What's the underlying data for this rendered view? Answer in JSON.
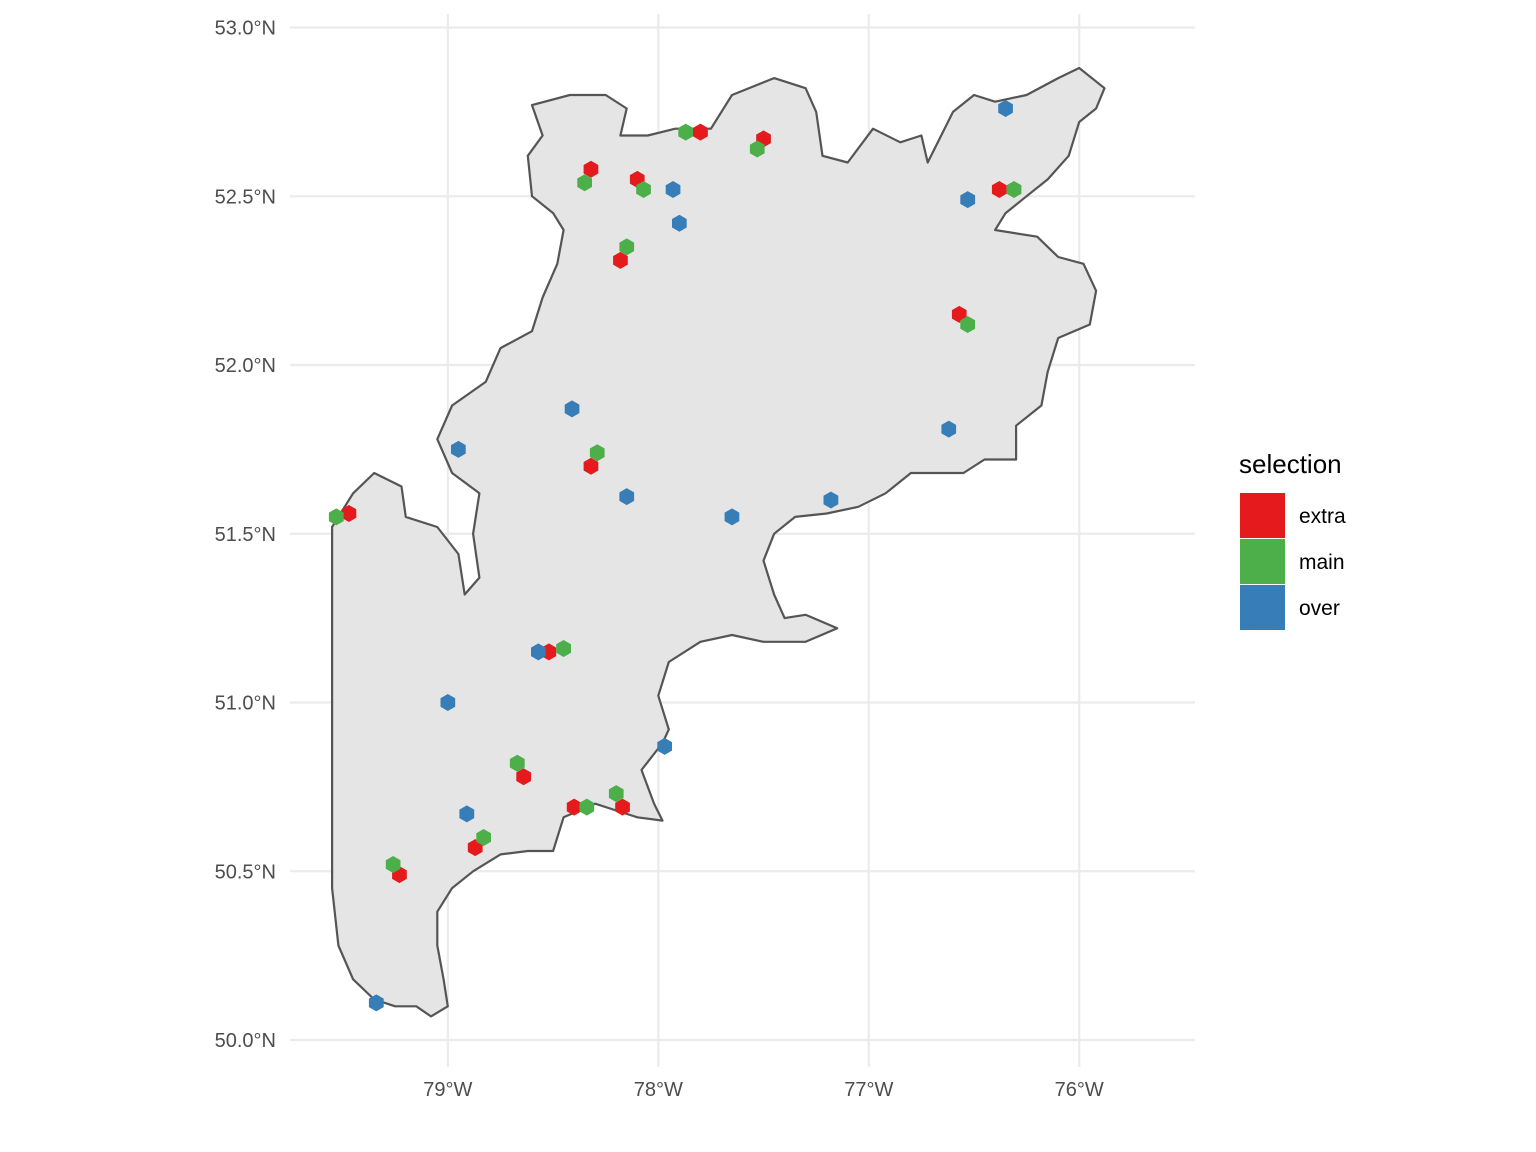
{
  "chart_data": {
    "type": "scatter",
    "title": "",
    "xlabel": "",
    "ylabel": "",
    "xlim": [
      -79.75,
      -75.45
    ],
    "ylim": [
      49.92,
      53.04
    ],
    "x_ticks": [
      {
        "value": -79,
        "label": "79°W"
      },
      {
        "value": -78,
        "label": "78°W"
      },
      {
        "value": -77,
        "label": "77°W"
      },
      {
        "value": -76,
        "label": "76°W"
      }
    ],
    "y_ticks": [
      {
        "value": 50.0,
        "label": "50.0°N"
      },
      {
        "value": 50.5,
        "label": "50.5°N"
      },
      {
        "value": 51.0,
        "label": "51.0°N"
      },
      {
        "value": 51.5,
        "label": "51.5°N"
      },
      {
        "value": 52.0,
        "label": "52.0°N"
      },
      {
        "value": 52.5,
        "label": "52.5°N"
      },
      {
        "value": 53.0,
        "label": "53.0°N"
      }
    ],
    "grid": true,
    "legend": {
      "title": "selection",
      "placement": "right",
      "entries": [
        {
          "label": "extra",
          "color": "#e41a1c"
        },
        {
          "label": "main",
          "color": "#4daf4a"
        },
        {
          "label": "over",
          "color": "#377eb8"
        }
      ]
    },
    "region": {
      "fill": "#e5e5e5",
      "stroke": "#555555",
      "outline": [
        [
          -79.55,
          51.52
        ],
        [
          -79.45,
          51.62
        ],
        [
          -79.35,
          51.68
        ],
        [
          -79.22,
          51.64
        ],
        [
          -79.2,
          51.55
        ],
        [
          -79.05,
          51.52
        ],
        [
          -78.95,
          51.44
        ],
        [
          -78.92,
          51.32
        ],
        [
          -78.85,
          51.37
        ],
        [
          -78.88,
          51.5
        ],
        [
          -78.85,
          51.62
        ],
        [
          -78.98,
          51.68
        ],
        [
          -79.05,
          51.78
        ],
        [
          -78.98,
          51.88
        ],
        [
          -78.82,
          51.95
        ],
        [
          -78.75,
          52.05
        ],
        [
          -78.6,
          52.1
        ],
        [
          -78.55,
          52.2
        ],
        [
          -78.48,
          52.3
        ],
        [
          -78.45,
          52.4
        ],
        [
          -78.5,
          52.45
        ],
        [
          -78.6,
          52.5
        ],
        [
          -78.62,
          52.62
        ],
        [
          -78.55,
          52.68
        ],
        [
          -78.6,
          52.77
        ],
        [
          -78.42,
          52.8
        ],
        [
          -78.25,
          52.8
        ],
        [
          -78.15,
          52.76
        ],
        [
          -78.18,
          52.68
        ],
        [
          -78.05,
          52.68
        ],
        [
          -77.92,
          52.7
        ],
        [
          -77.75,
          52.7
        ],
        [
          -77.65,
          52.8
        ],
        [
          -77.45,
          52.85
        ],
        [
          -77.3,
          52.82
        ],
        [
          -77.25,
          52.75
        ],
        [
          -77.22,
          52.62
        ],
        [
          -77.1,
          52.6
        ],
        [
          -76.98,
          52.7
        ],
        [
          -76.85,
          52.66
        ],
        [
          -76.75,
          52.68
        ],
        [
          -76.72,
          52.6
        ],
        [
          -76.6,
          52.75
        ],
        [
          -76.5,
          52.8
        ],
        [
          -76.4,
          52.78
        ],
        [
          -76.25,
          52.8
        ],
        [
          -76.1,
          52.85
        ],
        [
          -76.0,
          52.88
        ],
        [
          -75.88,
          52.82
        ],
        [
          -75.92,
          52.76
        ],
        [
          -76.0,
          52.72
        ],
        [
          -76.05,
          52.62
        ],
        [
          -76.15,
          52.55
        ],
        [
          -76.25,
          52.5
        ],
        [
          -76.35,
          52.45
        ],
        [
          -76.4,
          52.4
        ],
        [
          -76.2,
          52.38
        ],
        [
          -76.1,
          52.32
        ],
        [
          -75.98,
          52.3
        ],
        [
          -75.92,
          52.22
        ],
        [
          -75.95,
          52.12
        ],
        [
          -76.1,
          52.08
        ],
        [
          -76.15,
          51.98
        ],
        [
          -76.18,
          51.88
        ],
        [
          -76.3,
          51.82
        ],
        [
          -76.3,
          51.72
        ],
        [
          -76.45,
          51.72
        ],
        [
          -76.55,
          51.68
        ],
        [
          -76.8,
          51.68
        ],
        [
          -76.92,
          51.62
        ],
        [
          -77.05,
          51.58
        ],
        [
          -77.2,
          51.56
        ],
        [
          -77.35,
          51.55
        ],
        [
          -77.45,
          51.5
        ],
        [
          -77.5,
          51.42
        ],
        [
          -77.45,
          51.32
        ],
        [
          -77.4,
          51.25
        ],
        [
          -77.3,
          51.26
        ],
        [
          -77.15,
          51.22
        ],
        [
          -77.3,
          51.18
        ],
        [
          -77.5,
          51.18
        ],
        [
          -77.65,
          51.2
        ],
        [
          -77.8,
          51.18
        ],
        [
          -77.95,
          51.12
        ],
        [
          -78.0,
          51.02
        ],
        [
          -77.95,
          50.92
        ],
        [
          -77.98,
          50.88
        ],
        [
          -78.08,
          50.8
        ],
        [
          -78.02,
          50.7
        ],
        [
          -77.98,
          50.65
        ],
        [
          -78.1,
          50.66
        ],
        [
          -78.2,
          50.68
        ],
        [
          -78.3,
          50.7
        ],
        [
          -78.45,
          50.66
        ],
        [
          -78.5,
          50.56
        ],
        [
          -78.62,
          50.56
        ],
        [
          -78.75,
          50.55
        ],
        [
          -78.88,
          50.5
        ],
        [
          -78.98,
          50.45
        ],
        [
          -79.05,
          50.38
        ],
        [
          -79.05,
          50.28
        ],
        [
          -79.02,
          50.18
        ],
        [
          -79.0,
          50.1
        ],
        [
          -79.08,
          50.07
        ],
        [
          -79.15,
          50.1
        ],
        [
          -79.25,
          50.1
        ],
        [
          -79.35,
          50.12
        ],
        [
          -79.45,
          50.18
        ],
        [
          -79.52,
          50.28
        ],
        [
          -79.55,
          50.45
        ],
        [
          -79.55,
          50.7
        ],
        [
          -79.55,
          50.95
        ],
        [
          -79.55,
          51.2
        ],
        [
          -79.55,
          51.4
        ]
      ]
    },
    "series": [
      {
        "name": "extra",
        "color": "#e41a1c",
        "points": [
          {
            "x": -79.47,
            "y": 51.56
          },
          {
            "x": -78.32,
            "y": 52.58
          },
          {
            "x": -78.1,
            "y": 52.55
          },
          {
            "x": -77.8,
            "y": 52.69
          },
          {
            "x": -77.5,
            "y": 52.67
          },
          {
            "x": -78.18,
            "y": 52.31
          },
          {
            "x": -76.57,
            "y": 52.15
          },
          {
            "x": -76.38,
            "y": 52.52
          },
          {
            "x": -78.32,
            "y": 51.7
          },
          {
            "x": -78.52,
            "y": 51.15
          },
          {
            "x": -78.64,
            "y": 50.78
          },
          {
            "x": -78.4,
            "y": 50.69
          },
          {
            "x": -78.17,
            "y": 50.69
          },
          {
            "x": -78.87,
            "y": 50.57
          },
          {
            "x": -79.23,
            "y": 50.49
          }
        ]
      },
      {
        "name": "main",
        "color": "#4daf4a",
        "points": [
          {
            "x": -79.53,
            "y": 51.55
          },
          {
            "x": -78.35,
            "y": 52.54
          },
          {
            "x": -78.07,
            "y": 52.52
          },
          {
            "x": -77.87,
            "y": 52.69
          },
          {
            "x": -77.53,
            "y": 52.64
          },
          {
            "x": -78.15,
            "y": 52.35
          },
          {
            "x": -76.53,
            "y": 52.12
          },
          {
            "x": -76.31,
            "y": 52.52
          },
          {
            "x": -78.29,
            "y": 51.74
          },
          {
            "x": -78.45,
            "y": 51.16
          },
          {
            "x": -78.67,
            "y": 50.82
          },
          {
            "x": -78.34,
            "y": 50.69
          },
          {
            "x": -78.2,
            "y": 50.73
          },
          {
            "x": -78.83,
            "y": 50.6
          },
          {
            "x": -79.26,
            "y": 50.52
          }
        ]
      },
      {
        "name": "over",
        "color": "#377eb8",
        "points": [
          {
            "x": -76.35,
            "y": 52.76
          },
          {
            "x": -77.93,
            "y": 52.52
          },
          {
            "x": -77.9,
            "y": 52.42
          },
          {
            "x": -76.53,
            "y": 52.49
          },
          {
            "x": -78.41,
            "y": 51.87
          },
          {
            "x": -78.95,
            "y": 51.75
          },
          {
            "x": -76.62,
            "y": 51.81
          },
          {
            "x": -78.15,
            "y": 51.61
          },
          {
            "x": -77.65,
            "y": 51.55
          },
          {
            "x": -77.18,
            "y": 51.6
          },
          {
            "x": -78.57,
            "y": 51.15
          },
          {
            "x": -79.0,
            "y": 51.0
          },
          {
            "x": -77.97,
            "y": 50.87
          },
          {
            "x": -78.91,
            "y": 50.67
          },
          {
            "x": -79.34,
            "y": 50.11
          }
        ]
      }
    ]
  }
}
